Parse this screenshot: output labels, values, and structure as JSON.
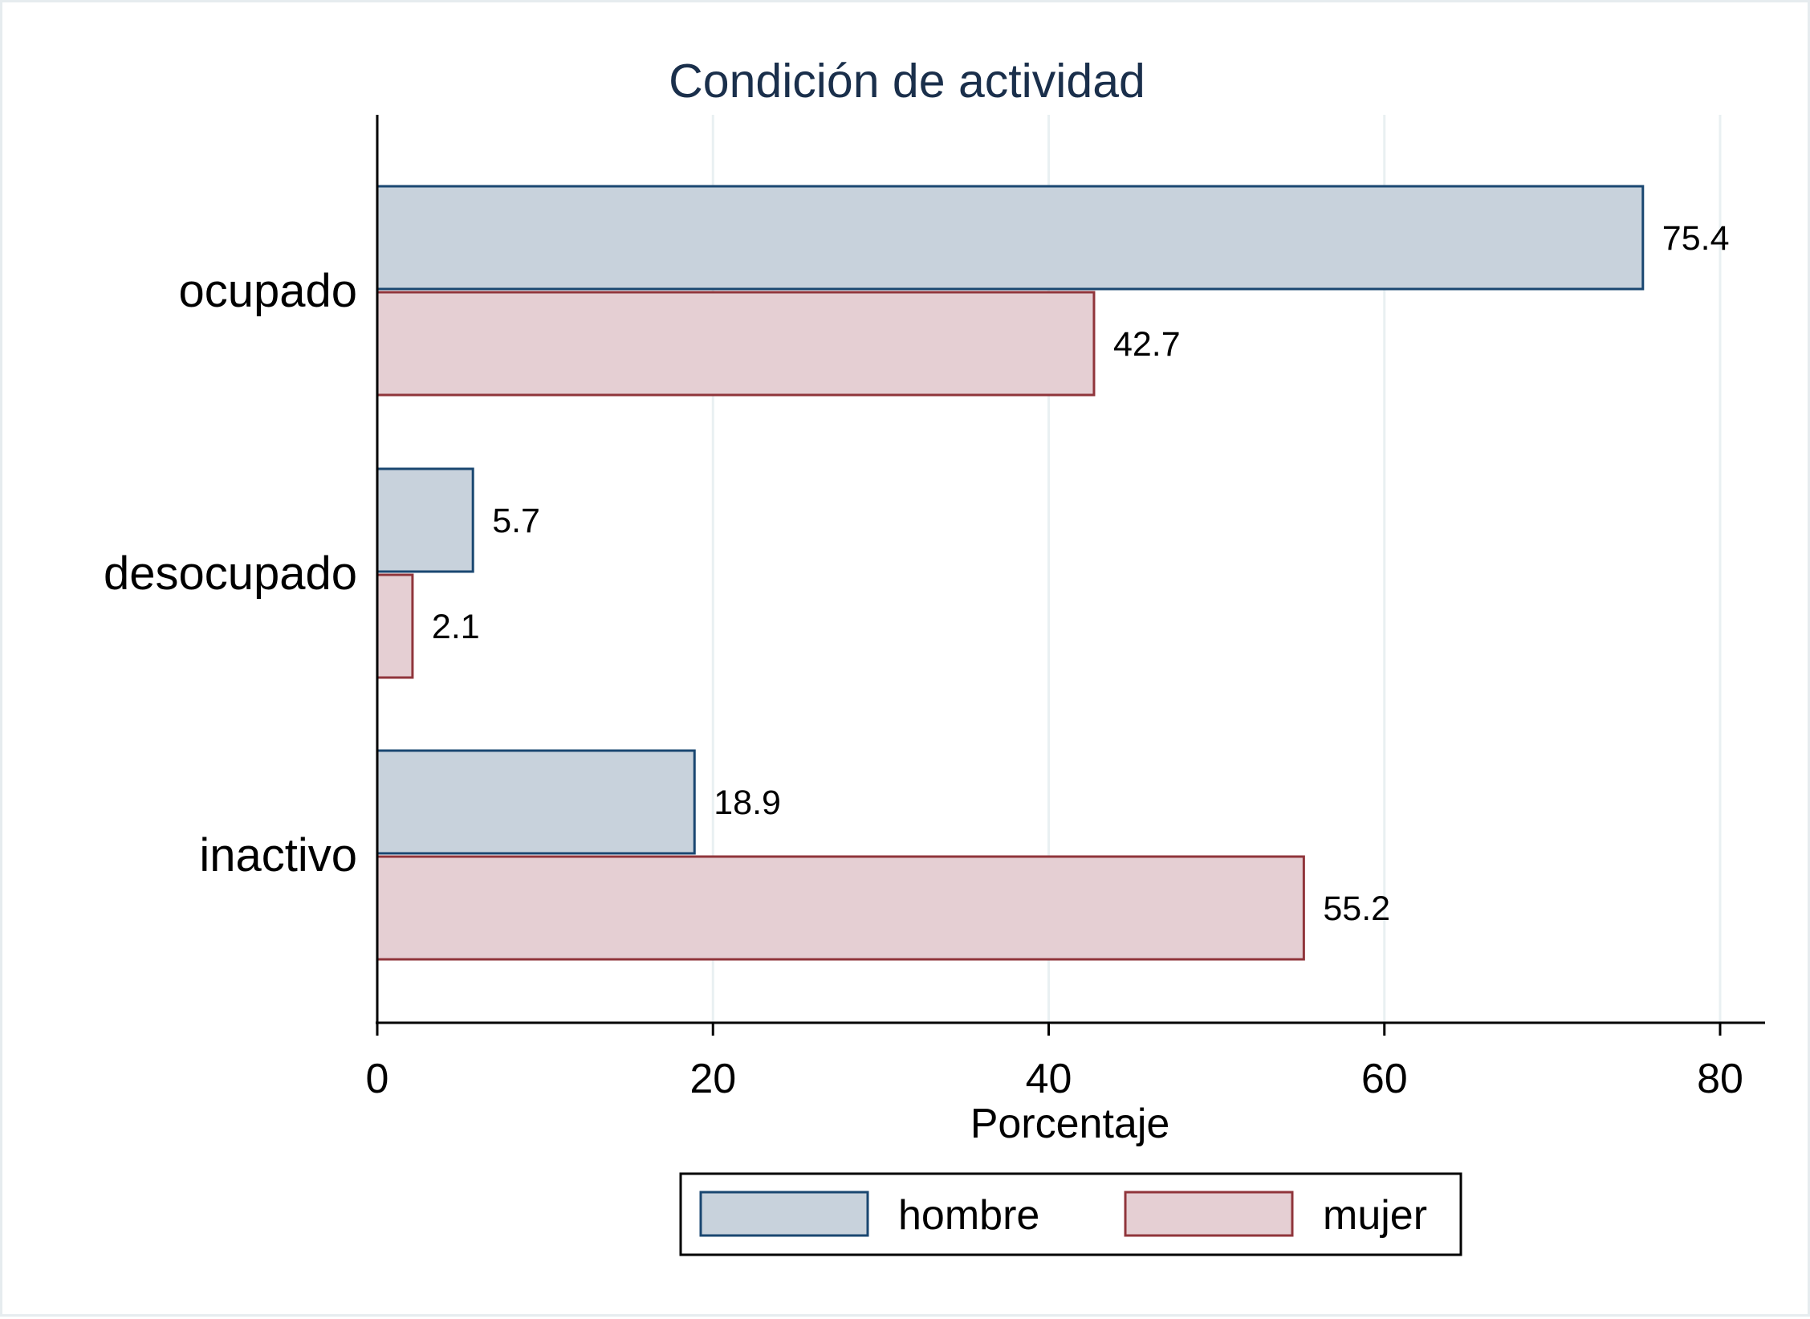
{
  "chart_data": {
    "type": "bar",
    "orientation": "horizontal",
    "title": "Condición de actividad",
    "xlabel": "Porcentaje",
    "ylabel": "",
    "categories": [
      "ocupado",
      "desocupado",
      "inactivo"
    ],
    "series": [
      {
        "name": "hombre",
        "values": [
          75.4,
          5.7,
          18.9
        ],
        "labels": [
          "75.4",
          "5.7",
          "18.9"
        ],
        "fill": "#c8d2dc",
        "stroke": "#1a4771"
      },
      {
        "name": "mujer",
        "values": [
          42.7,
          2.1,
          55.2
        ],
        "labels": [
          "42.7",
          "2.1",
          "55.2"
        ],
        "fill": "#e5cfd3",
        "stroke": "#90353b"
      }
    ],
    "xlim": [
      0,
      80
    ],
    "xticks": [
      0,
      20,
      40,
      60,
      80
    ],
    "xtick_labels": [
      "0",
      "20",
      "40",
      "60",
      "80"
    ],
    "grid": true,
    "legend_position": "bottom"
  }
}
